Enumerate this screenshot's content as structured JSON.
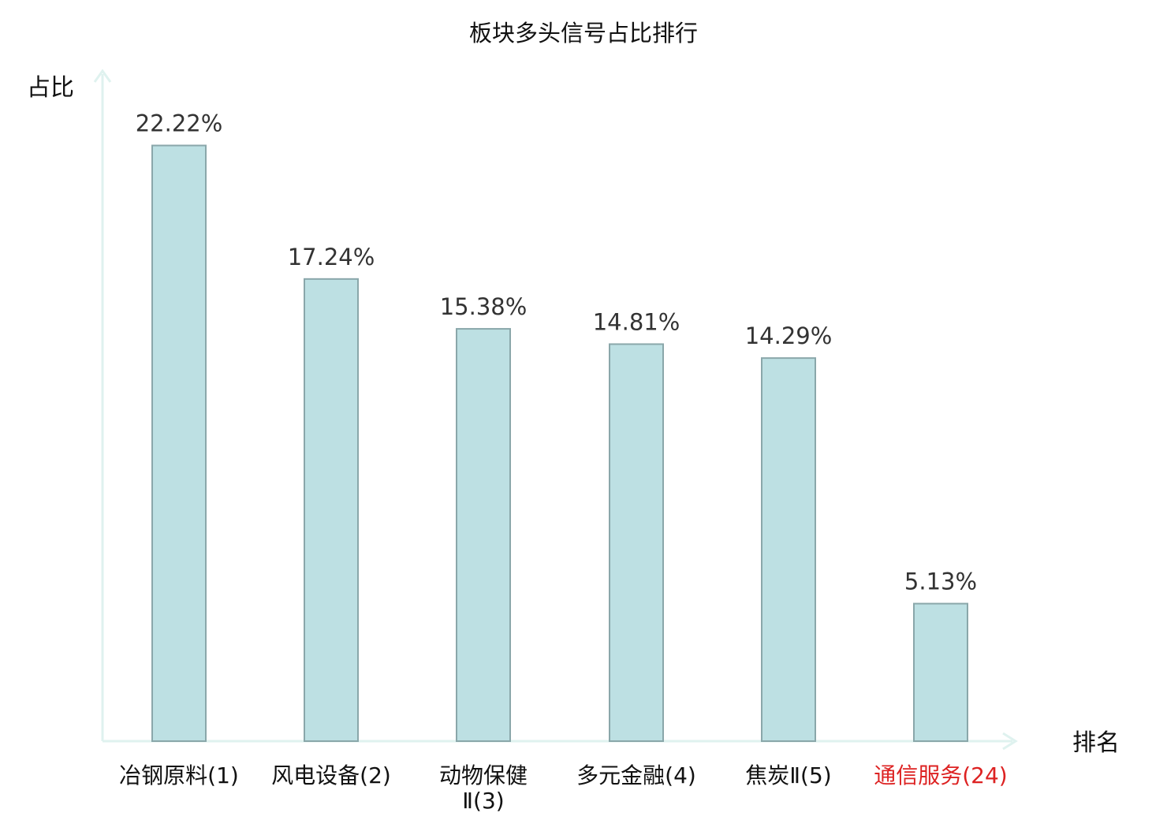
{
  "chart_data": {
    "type": "bar",
    "title": "板块多头信号占比排行",
    "xlabel": "排名",
    "ylabel": "占比",
    "categories": [
      [
        "冶钢原料(1)"
      ],
      [
        "风电设备(2)"
      ],
      [
        "动物保健",
        "Ⅱ(3)"
      ],
      [
        "多元金融(4)"
      ],
      [
        "焦炭Ⅱ(5)"
      ],
      [
        "通信服务(24)"
      ]
    ],
    "values": [
      22.22,
      17.24,
      15.38,
      14.81,
      14.29,
      5.13
    ],
    "value_labels": [
      "22.22%",
      "17.24%",
      "15.38%",
      "14.81%",
      "14.29%",
      "5.13%"
    ],
    "highlight_index": 5,
    "ylim": [
      0,
      25
    ],
    "grid": false,
    "colors": {
      "bar_fill": "#bde0e3",
      "bar_stroke": "#8aa7aa",
      "axis": "#dff2ef",
      "highlight_text": "#dd2222"
    }
  }
}
